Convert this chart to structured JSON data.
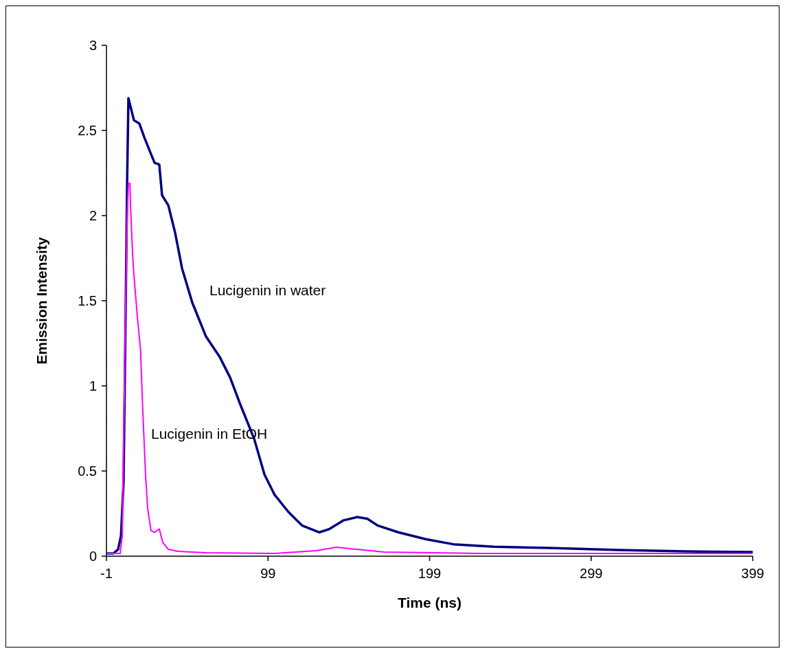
{
  "chart_data": {
    "type": "line",
    "xlabel": "Time (ns)",
    "ylabel": "Emission Intensity",
    "xlim": [
      -1,
      399
    ],
    "xticks": [
      -1,
      99,
      199,
      299,
      399
    ],
    "ylim": [
      0,
      3
    ],
    "yticks": [
      0,
      0.5,
      1,
      1.5,
      2,
      2.5,
      3
    ],
    "grid": false,
    "marker": "none",
    "line_style": "solid",
    "series": [
      {
        "color": "#000080",
        "x": [
          -1,
          3.3,
          6.2,
          8,
          9.6,
          10.9,
          11.8,
          12.6,
          13.9,
          16,
          19.4,
          22.4,
          26.6,
          28.8,
          31.7,
          33.4,
          37.3,
          41.5,
          45.8,
          52.1,
          60.6,
          69.1,
          75.5,
          81.9,
          90.4,
          96.8,
          103.1,
          111.6,
          120.1,
          130.8,
          137.1,
          145.6,
          154.2,
          160.5,
          166.9,
          179.7,
          196.7,
          213.7,
          239.2,
          273,
          316,
          358,
          399
        ],
        "values": [
          0.016,
          0.016,
          0.04,
          0.12,
          0.44,
          1.45,
          2.2,
          2.69,
          2.64,
          2.56,
          2.54,
          2.46,
          2.36,
          2.31,
          2.3,
          2.12,
          2.06,
          1.9,
          1.69,
          1.49,
          1.29,
          1.17,
          1.05,
          0.89,
          0.69,
          0.48,
          0.36,
          0.26,
          0.18,
          0.14,
          0.16,
          0.21,
          0.23,
          0.22,
          0.18,
          0.14,
          0.1,
          0.07,
          0.055,
          0.048,
          0.036,
          0.028,
          0.024
        ]
      },
      {
        "color": "#ff00ff",
        "x": [
          -1,
          7.5,
          8.8,
          10.5,
          11.8,
          12.6,
          13.5,
          13.9,
          15.2,
          16,
          18.1,
          20.1,
          21.5,
          23.2,
          24.5,
          26.6,
          28.8,
          31.7,
          33.9,
          37.3,
          43.6,
          60.6,
          103,
          128.7,
          141.4,
          154,
          171,
          231,
          399
        ],
        "values": [
          0.016,
          0.016,
          0.12,
          1.25,
          1.98,
          2.19,
          2.19,
          2.06,
          1.77,
          1.65,
          1.41,
          1.21,
          0.85,
          0.48,
          0.28,
          0.15,
          0.14,
          0.16,
          0.08,
          0.04,
          0.028,
          0.02,
          0.016,
          0.032,
          0.052,
          0.04,
          0.024,
          0.016,
          0.016
        ]
      }
    ],
    "annotations": [
      "Lucigenin in water",
      "Lucigenin in EtOH"
    ]
  }
}
